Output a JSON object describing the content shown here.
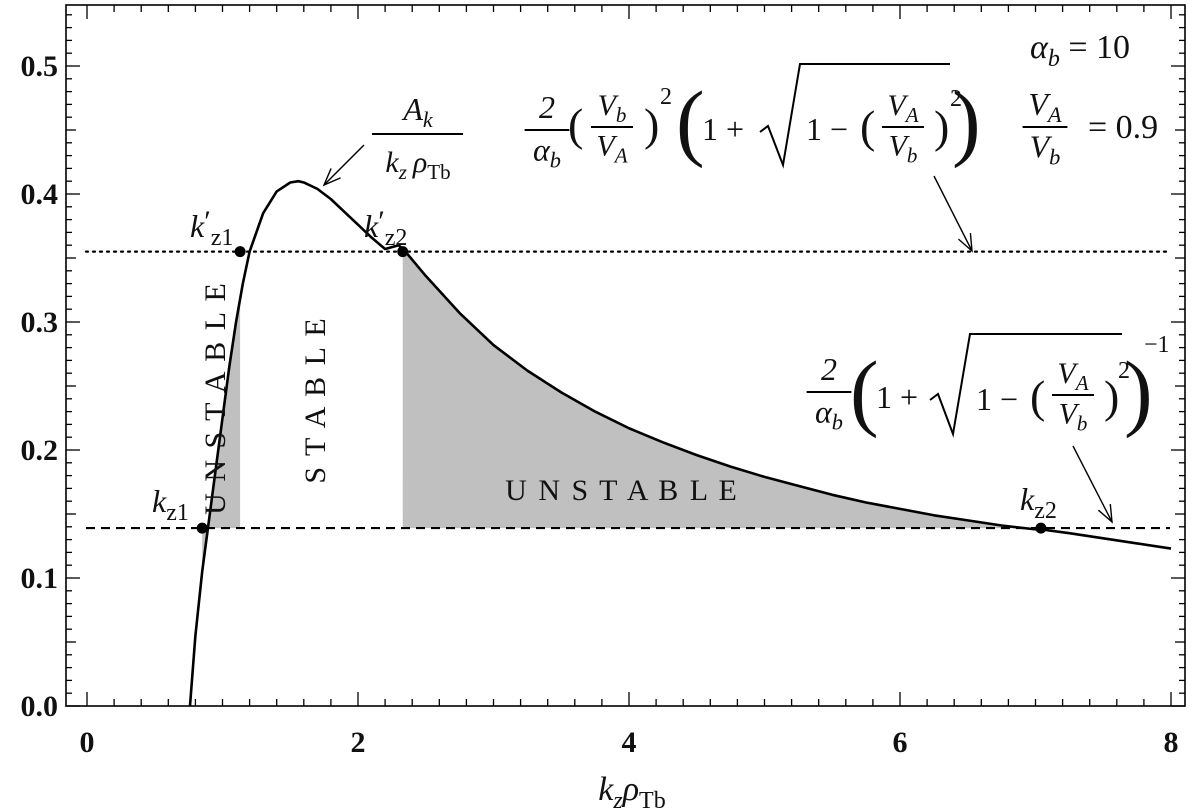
{
  "chart_data": {
    "type": "line",
    "xlabel": "kzρTb",
    "ylabel": "",
    "xlim": [
      0,
      8.1
    ],
    "ylim": [
      0,
      0.55
    ],
    "x_ticks": [
      "0",
      "2",
      "4",
      "6",
      "8"
    ],
    "y_ticks": [
      "0.0",
      "0.1",
      "0.2",
      "0.3",
      "0.4",
      "0.5"
    ],
    "grid": false,
    "curve": {
      "name": "Ak / kz ρTb",
      "x": [
        0.76,
        0.8,
        0.85,
        0.9,
        0.95,
        1.0,
        1.05,
        1.1,
        1.15,
        1.2,
        1.3,
        1.4,
        1.5,
        1.56,
        1.6,
        1.7,
        1.8,
        1.9,
        2.0,
        2.1,
        2.2,
        2.3,
        2.35,
        2.5,
        2.75,
        3.0,
        3.25,
        3.5,
        3.75,
        4.0,
        4.25,
        4.5,
        4.75,
        5.0,
        5.25,
        5.5,
        5.75,
        6.0,
        6.25,
        6.5,
        6.75,
        7.0,
        7.04,
        7.25,
        7.5,
        7.75,
        8.0
      ],
      "y": [
        0.0,
        0.055,
        0.105,
        0.145,
        0.185,
        0.225,
        0.265,
        0.3,
        0.33,
        0.355,
        0.385,
        0.402,
        0.409,
        0.41,
        0.409,
        0.404,
        0.396,
        0.386,
        0.376,
        0.366,
        0.357,
        0.36,
        0.355,
        0.336,
        0.307,
        0.282,
        0.262,
        0.245,
        0.23,
        0.217,
        0.206,
        0.196,
        0.187,
        0.179,
        0.172,
        0.165,
        0.159,
        0.154,
        0.149,
        0.145,
        0.141,
        0.138,
        0.138,
        0.135,
        0.131,
        0.127,
        0.123
      ]
    },
    "thresholds": [
      {
        "style": "dotted",
        "y": 0.355
      },
      {
        "style": "dashed",
        "y": 0.139
      }
    ],
    "points": [
      {
        "label_main": "k",
        "label_prime": "",
        "label_sub": "z1",
        "x": 0.85,
        "y": 0.139
      },
      {
        "label_main": "k",
        "label_prime": "′",
        "label_sub": "z1",
        "x": 1.13,
        "y": 0.355
      },
      {
        "label_main": "k",
        "label_prime": "′",
        "label_sub": "z2",
        "x": 2.33,
        "y": 0.355
      },
      {
        "label_main": "k",
        "label_prime": "",
        "label_sub": "z2",
        "x": 7.04,
        "y": 0.139
      }
    ],
    "shaded_regions": [
      {
        "label": "UNSTABLE",
        "x_from": 0.85,
        "x_to": 1.13,
        "orientation": "vertical"
      },
      {
        "label": "UNSTABLE",
        "x_from": 2.33,
        "x_to": 7.04,
        "orientation": "horizontal"
      }
    ],
    "region_labels": [
      {
        "label": "STABLE",
        "orientation": "vertical"
      }
    ],
    "parameters": {
      "alpha_b": "αb = 10",
      "va_vb": "= 0.9"
    },
    "annotations": {
      "curve_label": {
        "num": "Ak",
        "den": "kz ρTb"
      },
      "upper_threshold": "2/αb (Vb/VA)² (1 + √(1 − (VA/Vb)²))",
      "lower_threshold": "2/αb (1 + √(1 − (VA/Vb)²))⁻¹"
    },
    "colors": {
      "curve": "#000000",
      "fill": "#c0c0c0",
      "axes": "#000000"
    }
  }
}
